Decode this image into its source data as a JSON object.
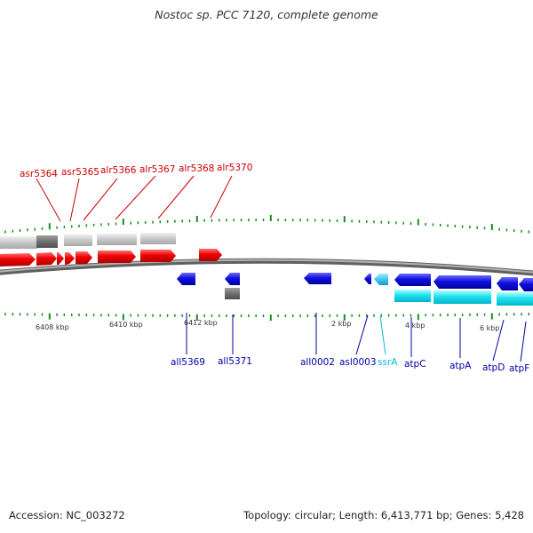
{
  "title": "Nostoc sp. PCC 7120, complete genome",
  "footer": {
    "accession": "Accession: NC_003272",
    "summary": "Topology: circular; Length: 6,413,771 bp; Genes: 5,428"
  },
  "colors": {
    "red_genes": "#ee0000",
    "blue_genes": "#1010dd",
    "cyan_genes": "#20e0f0",
    "light_cyan": "#40c8f0",
    "grey_features": "#c8c8c8",
    "dark_grey_features": "#707070",
    "backbone": "#808080",
    "ticks": "#1a8a1a",
    "top_labels": "#cc0000",
    "bottom_labels": "#0000aa",
    "ssrA_label": "#00c0d0"
  },
  "scale_labels": [
    "6408 kbp",
    "6410 kbp",
    "6412 kbp",
    "2 kbp",
    "4 kbp",
    "6 kbp"
  ],
  "top_gene_labels": [
    "asr5364",
    "asr5365",
    "alr5366",
    "alr5367",
    "alr5368",
    "alr5370"
  ],
  "bottom_gene_labels": [
    "all5369",
    "all5371",
    "all0002",
    "asl0003",
    "ssrA",
    "atpC",
    "atpA",
    "atpD",
    "atpF"
  ]
}
